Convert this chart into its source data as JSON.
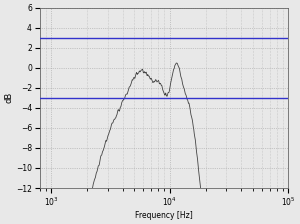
{
  "title": "",
  "xlabel": "Frequency [Hz]",
  "ylabel": "dB",
  "xlim_low": 800,
  "xlim_high": 22000,
  "ylim": [
    -12,
    6
  ],
  "yticks": [
    -12,
    -10,
    -8,
    -6,
    -4,
    -2,
    0,
    2,
    4,
    6
  ],
  "hline_upper": 3.0,
  "hline_lower": -3.0,
  "hline_color": "#3333cc",
  "line_color": "#444444",
  "bg_color": "#e8e8e8",
  "grid_color": "#999999",
  "seed": 42
}
